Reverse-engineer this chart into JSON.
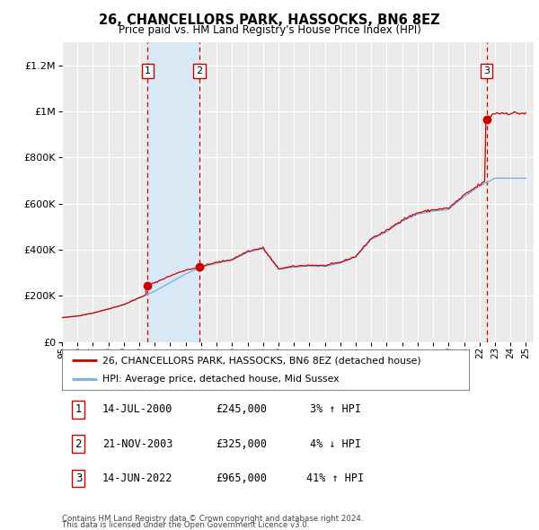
{
  "title": "26, CHANCELLORS PARK, HASSOCKS, BN6 8EZ",
  "subtitle": "Price paid vs. HM Land Registry's House Price Index (HPI)",
  "ylim": [
    0,
    1300000
  ],
  "xlim": [
    1995.0,
    2025.5
  ],
  "yticks": [
    0,
    200000,
    400000,
    600000,
    800000,
    1000000,
    1200000
  ],
  "ytick_labels": [
    "£0",
    "£200K",
    "£400K",
    "£600K",
    "£800K",
    "£1M",
    "£1.2M"
  ],
  "xtick_years": [
    1995,
    1996,
    1997,
    1998,
    1999,
    2000,
    2001,
    2002,
    2003,
    2004,
    2005,
    2006,
    2007,
    2008,
    2009,
    2010,
    2011,
    2012,
    2013,
    2014,
    2015,
    2016,
    2017,
    2018,
    2019,
    2020,
    2021,
    2022,
    2023,
    2024,
    2025
  ],
  "hpi_color": "#7aacdc",
  "price_color": "#cc0000",
  "marker_color": "#cc0000",
  "background_color": "#ffffff",
  "plot_bg_color": "#ebebeb",
  "grid_color": "#ffffff",
  "shade_color": "#d8e8f5",
  "dashed_line_color": "#cc0000",
  "transactions": [
    {
      "num": 1,
      "date": "14-JUL-2000",
      "price": 245000,
      "pct": "3%",
      "dir": "↑",
      "year": 2000.54
    },
    {
      "num": 2,
      "date": "21-NOV-2003",
      "price": 325000,
      "pct": "4%",
      "dir": "↓",
      "year": 2003.89
    },
    {
      "num": 3,
      "date": "14-JUN-2022",
      "price": 965000,
      "pct": "41%",
      "dir": "↑",
      "year": 2022.45
    }
  ],
  "legend_line1": "26, CHANCELLORS PARK, HASSOCKS, BN6 8EZ (detached house)",
  "legend_line2": "HPI: Average price, detached house, Mid Sussex",
  "footnote1": "Contains HM Land Registry data © Crown copyright and database right 2024.",
  "footnote2": "This data is licensed under the Open Government Licence v3.0."
}
